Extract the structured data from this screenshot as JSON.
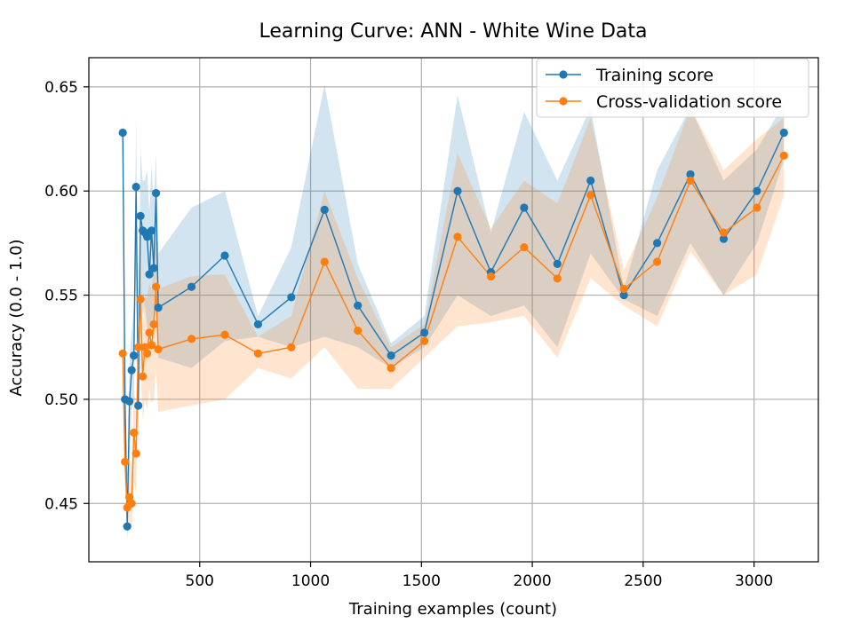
{
  "chart_data": {
    "type": "line",
    "title": "Learning Curve: ANN - White Wine Data",
    "xlabel": "Training examples (count)",
    "ylabel": "Accuracy (0.0 - 1.0)",
    "xlim": [
      0,
      3290
    ],
    "ylim": [
      0.422,
      0.664
    ],
    "x_ticks": [
      500,
      1000,
      1500,
      2000,
      2500,
      3000
    ],
    "y_ticks": [
      0.45,
      0.5,
      0.55,
      0.6,
      0.65
    ],
    "x_tick_labels": [
      "500",
      "1000",
      "1500",
      "2000",
      "2500",
      "3000"
    ],
    "y_tick_labels": [
      "0.45",
      "0.50",
      "0.55",
      "0.60",
      "0.65"
    ],
    "grid": true,
    "legend_position": "top-right",
    "colors": {
      "training": "#1f77b4",
      "training_band": "#1f77b4",
      "cv": "#ff7f0e",
      "cv_band": "#ff7f0e",
      "grid": "#b0b0b0"
    },
    "series": [
      {
        "name": "Training score",
        "x": [
          153,
          163,
          173,
          183,
          193,
          203,
          213,
          223,
          233,
          243,
          253,
          263,
          273,
          283,
          293,
          303,
          313,
          463,
          613,
          763,
          913,
          1063,
          1213,
          1363,
          1513,
          1663,
          1813,
          1963,
          2113,
          2263,
          2413,
          2563,
          2713,
          2863,
          3013,
          3135
        ],
        "y": [
          0.628,
          0.5,
          0.439,
          0.499,
          0.514,
          0.521,
          0.602,
          0.497,
          0.588,
          0.581,
          0.58,
          0.578,
          0.56,
          0.581,
          0.563,
          0.599,
          0.544,
          0.554,
          0.569,
          0.536,
          0.549,
          0.591,
          0.545,
          0.521,
          0.532,
          0.6,
          0.561,
          0.592,
          0.565,
          0.605,
          0.55,
          0.575,
          0.608,
          0.577,
          0.6,
          0.628
        ],
        "lower": [
          0.61,
          0.48,
          0.432,
          0.47,
          0.495,
          0.5,
          0.56,
          0.475,
          0.55,
          0.54,
          0.545,
          0.535,
          0.52,
          0.54,
          0.525,
          0.56,
          0.52,
          0.515,
          0.528,
          0.53,
          0.525,
          0.53,
          0.525,
          0.515,
          0.525,
          0.55,
          0.54,
          0.545,
          0.525,
          0.57,
          0.548,
          0.54,
          0.575,
          0.55,
          0.575,
          0.615
        ],
        "upper": [
          0.64,
          0.52,
          0.45,
          0.52,
          0.532,
          0.545,
          0.635,
          0.52,
          0.62,
          0.605,
          0.605,
          0.61,
          0.59,
          0.612,
          0.595,
          0.618,
          0.57,
          0.592,
          0.6,
          0.54,
          0.573,
          0.651,
          0.565,
          0.527,
          0.54,
          0.646,
          0.58,
          0.638,
          0.605,
          0.64,
          0.553,
          0.61,
          0.64,
          0.605,
          0.62,
          0.642
        ]
      },
      {
        "name": "Cross-validation score",
        "x": [
          153,
          163,
          173,
          183,
          193,
          203,
          213,
          223,
          233,
          243,
          253,
          263,
          273,
          283,
          293,
          303,
          313,
          463,
          613,
          763,
          913,
          1063,
          1213,
          1363,
          1513,
          1663,
          1813,
          1963,
          2113,
          2263,
          2413,
          2563,
          2713,
          2863,
          3013,
          3135
        ],
        "y": [
          0.522,
          0.47,
          0.448,
          0.453,
          0.45,
          0.484,
          0.474,
          0.525,
          0.548,
          0.511,
          0.525,
          0.522,
          0.532,
          0.526,
          0.536,
          0.554,
          0.524,
          0.529,
          0.531,
          0.522,
          0.525,
          0.566,
          0.533,
          0.515,
          0.528,
          0.578,
          0.559,
          0.573,
          0.558,
          0.598,
          0.553,
          0.566,
          0.605,
          0.58,
          0.592,
          0.617
        ],
        "lower": [
          0.5,
          0.455,
          0.435,
          0.44,
          0.438,
          0.46,
          0.455,
          0.5,
          0.515,
          0.49,
          0.5,
          0.495,
          0.505,
          0.498,
          0.5,
          0.515,
          0.494,
          0.497,
          0.5,
          0.515,
          0.51,
          0.525,
          0.505,
          0.505,
          0.52,
          0.535,
          0.537,
          0.54,
          0.52,
          0.558,
          0.545,
          0.535,
          0.571,
          0.55,
          0.56,
          0.598
        ],
        "upper": [
          0.54,
          0.49,
          0.465,
          0.47,
          0.468,
          0.505,
          0.497,
          0.548,
          0.575,
          0.535,
          0.55,
          0.548,
          0.556,
          0.552,
          0.565,
          0.58,
          0.553,
          0.559,
          0.56,
          0.53,
          0.54,
          0.6,
          0.558,
          0.525,
          0.536,
          0.618,
          0.582,
          0.605,
          0.594,
          0.635,
          0.562,
          0.597,
          0.64,
          0.61,
          0.625,
          0.635
        ]
      }
    ]
  }
}
